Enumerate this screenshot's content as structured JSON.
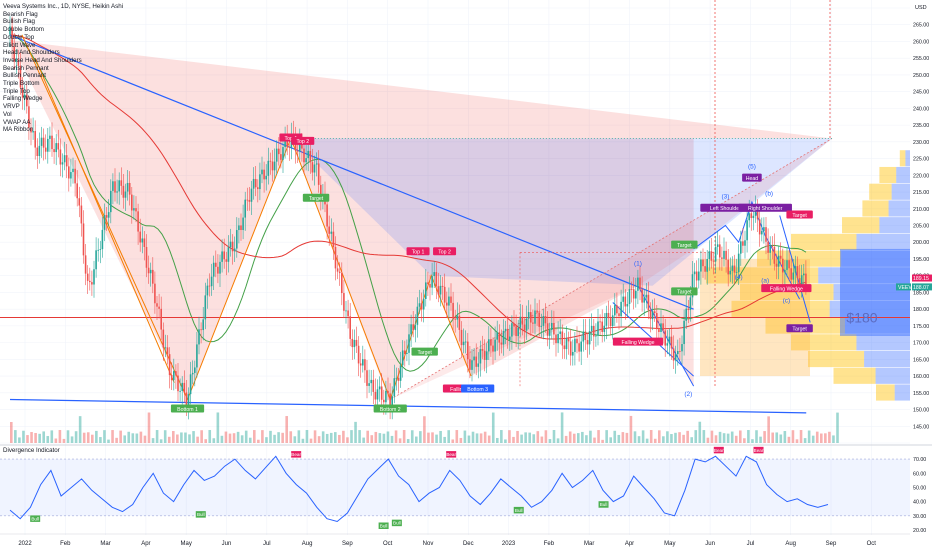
{
  "header": {
    "title": "Veeva Systems Inc., 1D, NYSE, Heikin Ashi"
  },
  "indicator_list": [
    "Bearish Flag",
    "Bullish Flag",
    "Double Bottom",
    "Double Top",
    "Elliott Wave",
    "Head And Shoulders",
    "Inverse Head And Shoulders",
    "Bearish Pennant",
    "Bullish Pennant",
    "Triple Bottom",
    "Triple Top",
    "Falling Wedge",
    "VRVP",
    "Vol",
    "VWAP AA",
    "MA Ribbon"
  ],
  "currency": "USD",
  "colors": {
    "bull": "#26a69a",
    "bear": "#ef5350",
    "accent_blue": "#2962ff",
    "orange": "#f57c00",
    "purple": "#7b1fa2",
    "red_line": "#e53935",
    "green_ma": "#43a047",
    "label_red": "#e91e63",
    "label_green": "#4caf50"
  },
  "price_badges": {
    "last": "189.15",
    "ticker": "VEEV",
    "other": "188.07"
  },
  "chart_data": {
    "type": "candlestick",
    "title": "Veeva Systems Inc., 1D, NYSE, Heikin Ashi",
    "price_axis": {
      "min": 140,
      "max": 270,
      "ticks": [
        "270.00",
        "265.00",
        "260.00",
        "255.00",
        "250.00",
        "245.00",
        "240.00",
        "235.00",
        "230.00",
        "225.00",
        "220.00",
        "215.00",
        "210.00",
        "205.00",
        "200.00",
        "195.00",
        "190.00",
        "185.00",
        "180.00",
        "175.00",
        "170.00",
        "165.00",
        "160.00",
        "155.00",
        "150.00",
        "145.00",
        "140.00"
      ]
    },
    "time_axis": {
      "labels": [
        "2022",
        "Feb",
        "Mar",
        "Apr",
        "May",
        "Jun",
        "Jul",
        "Aug",
        "Sep",
        "Oct",
        "Nov",
        "Dec",
        "2023",
        "Feb",
        "Mar",
        "Apr",
        "May",
        "Jun",
        "Jul",
        "Aug",
        "Sep",
        "Oct"
      ]
    },
    "price_path": [
      {
        "t": "2022-01",
        "price": 262
      },
      {
        "t": "2022-01-20",
        "price": 228
      },
      {
        "t": "2022-02",
        "price": 230
      },
      {
        "t": "2022-02-20",
        "price": 218
      },
      {
        "t": "2022-03",
        "price": 185
      },
      {
        "t": "2022-03-20",
        "price": 217
      },
      {
        "t": "2022-04",
        "price": 215
      },
      {
        "t": "2022-04-20",
        "price": 185
      },
      {
        "t": "2022-05",
        "price": 162
      },
      {
        "t": "2022-05-15",
        "price": 153
      },
      {
        "t": "2022-06",
        "price": 190
      },
      {
        "t": "2022-06-20",
        "price": 200
      },
      {
        "t": "2022-07",
        "price": 215
      },
      {
        "t": "2022-08",
        "price": 231
      },
      {
        "t": "2022-08-20",
        "price": 222
      },
      {
        "t": "2022-09",
        "price": 200
      },
      {
        "t": "2022-09-15",
        "price": 172
      },
      {
        "t": "2022-10",
        "price": 156
      },
      {
        "t": "2022-10-15",
        "price": 153
      },
      {
        "t": "2022-11",
        "price": 175
      },
      {
        "t": "2022-11-15",
        "price": 190
      },
      {
        "t": "2022-12",
        "price": 180
      },
      {
        "t": "2022-12-15",
        "price": 163
      },
      {
        "t": "2023-01",
        "price": 170
      },
      {
        "t": "2023-02",
        "price": 178
      },
      {
        "t": "2023-03",
        "price": 168
      },
      {
        "t": "2023-04",
        "price": 178
      },
      {
        "t": "2023-04-20",
        "price": 187
      },
      {
        "t": "2023-05",
        "price": 178
      },
      {
        "t": "2023-05-20",
        "price": 165
      },
      {
        "t": "2023-06",
        "price": 190
      },
      {
        "t": "2023-06-20",
        "price": 198
      },
      {
        "t": "2023-07",
        "price": 190
      },
      {
        "t": "2023-07-15",
        "price": 210
      },
      {
        "t": "2023-08",
        "price": 195
      },
      {
        "t": "2023-08-25",
        "price": 188
      }
    ],
    "key_levels": [
      {
        "price": 177.5,
        "color": "#e53935"
      }
    ],
    "annotations": [
      {
        "text": "Top 1",
        "kind": "bear",
        "price": 231,
        "date": "2022-08-01"
      },
      {
        "text": "Top 2",
        "kind": "bear",
        "price": 230,
        "date": "2022-08-10"
      },
      {
        "text": "Target",
        "kind": "bull",
        "price": 213,
        "date": "2022-08-20"
      },
      {
        "text": "Bottom 1",
        "kind": "bull",
        "price": 150,
        "date": "2022-05-15"
      },
      {
        "text": "Bottom 2",
        "kind": "bull",
        "price": 150,
        "date": "2022-10-15"
      },
      {
        "text": "Top 1",
        "kind": "bear",
        "price": 197,
        "date": "2022-11-05"
      },
      {
        "text": "Top 2",
        "kind": "bear",
        "price": 197,
        "date": "2022-11-25"
      },
      {
        "text": "Target",
        "kind": "bull",
        "price": 167,
        "date": "2022-11-10"
      },
      {
        "text": "Falling",
        "kind": "bear",
        "price": 156,
        "date": "2022-12-05"
      },
      {
        "text": "Bottom 3",
        "kind": "blue",
        "price": 156,
        "date": "2022-12-20"
      },
      {
        "text": "Falling Wedge",
        "kind": "bear",
        "price": 170,
        "date": "2023-04-20"
      },
      {
        "text": "Target",
        "kind": "bull",
        "price": 199,
        "date": "2023-05-25"
      },
      {
        "text": "Target",
        "kind": "bull",
        "price": 185,
        "date": "2023-05-25"
      },
      {
        "text": "Left Shoulder",
        "kind": "purple",
        "price": 210,
        "date": "2023-06-25"
      },
      {
        "text": "Head",
        "kind": "purple",
        "price": 219,
        "date": "2023-07-15"
      },
      {
        "text": "Right Shoulder",
        "kind": "purple",
        "price": 210,
        "date": "2023-07-25"
      },
      {
        "text": "Target",
        "kind": "bear",
        "price": 208,
        "date": "2023-08-20"
      },
      {
        "text": "Falling Wedge",
        "kind": "bear",
        "price": 186,
        "date": "2023-08-10"
      },
      {
        "text": "Target",
        "kind": "purple",
        "price": 174,
        "date": "2023-08-20"
      }
    ],
    "wave_labels": [
      "(1)",
      "(2)",
      "(3)",
      "(4)",
      "(5)",
      "(a)",
      "(b)",
      "(c)"
    ],
    "big_label": "$180"
  },
  "oscillator": {
    "title": "Divergence Indicator",
    "ticks": [
      "70.00",
      "60.00",
      "50.00",
      "40.00",
      "30.00",
      "20.00"
    ],
    "min": 20,
    "max": 75,
    "signals": [
      {
        "text": "Bull",
        "kind": "bull",
        "value": 31,
        "date": "2022-01-20"
      },
      {
        "text": "Bull",
        "kind": "bull",
        "value": 34,
        "date": "2022-05-25"
      },
      {
        "text": "Bear",
        "kind": "bear",
        "value": 70,
        "date": "2022-08-05"
      },
      {
        "text": "Bull",
        "kind": "bull",
        "value": 26,
        "date": "2022-10-10"
      },
      {
        "text": "Bull",
        "kind": "bull",
        "value": 28,
        "date": "2022-10-20"
      },
      {
        "text": "Bear",
        "kind": "bear",
        "value": 70,
        "date": "2022-11-30"
      },
      {
        "text": "Bull",
        "kind": "bull",
        "value": 37,
        "date": "2023-01-20"
      },
      {
        "text": "Bull",
        "kind": "bull",
        "value": 41,
        "date": "2023-03-25"
      },
      {
        "text": "Bear",
        "kind": "bear",
        "value": 73,
        "date": "2023-06-20"
      },
      {
        "text": "Bear",
        "kind": "bear",
        "value": 73,
        "date": "2023-07-20"
      }
    ],
    "series": [
      34,
      28,
      36,
      52,
      62,
      44,
      50,
      56,
      48,
      42,
      36,
      33,
      38,
      50,
      60,
      46,
      40,
      52,
      62,
      55,
      58,
      65,
      70,
      62,
      56,
      64,
      72,
      60,
      52,
      46,
      36,
      28,
      26,
      32,
      44,
      56,
      63,
      70,
      58,
      52,
      40,
      46,
      50,
      62,
      55,
      44,
      38,
      46,
      56,
      50,
      44,
      36,
      40,
      48,
      60,
      50,
      55,
      62,
      48,
      40,
      44,
      58,
      50,
      42,
      32,
      30,
      48,
      70,
      68,
      72,
      65,
      58,
      72,
      68,
      52,
      45,
      40,
      42,
      38,
      36,
      38
    ]
  }
}
